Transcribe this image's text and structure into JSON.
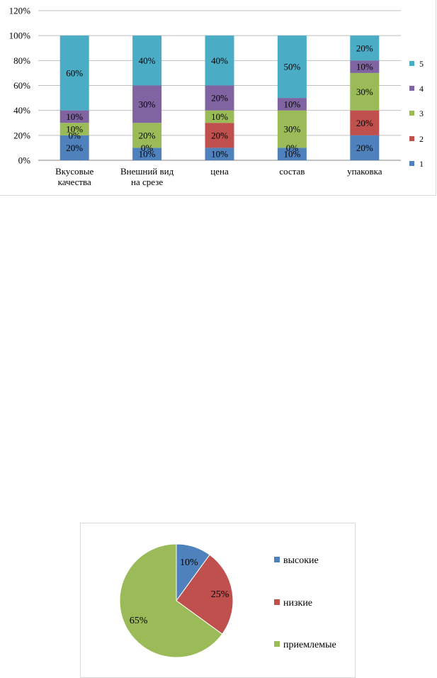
{
  "chart_data": [
    {
      "type": "bar",
      "stacked": true,
      "categories": [
        [
          "Вкусовые",
          "качества"
        ],
        [
          "Внешний вид",
          "на срезе"
        ],
        [
          "цена"
        ],
        [
          "состав"
        ],
        [
          "упаковка"
        ]
      ],
      "series": [
        {
          "name": "1",
          "color": "#4f81bd",
          "values": [
            20,
            10,
            10,
            10,
            20
          ],
          "labels": [
            "20%",
            "10%",
            "10%",
            "10%",
            "20%"
          ]
        },
        {
          "name": "2",
          "color": "#c0504d",
          "values": [
            0,
            0,
            20,
            0,
            20
          ],
          "labels": [
            "0%",
            "0%",
            "20%",
            "0%",
            "20%"
          ]
        },
        {
          "name": "3",
          "color": "#9bbb59",
          "values": [
            10,
            20,
            10,
            30,
            30
          ],
          "labels": [
            "10%",
            "20%",
            "10%",
            "30%",
            "30%"
          ]
        },
        {
          "name": "4",
          "color": "#8064a2",
          "values": [
            10,
            30,
            20,
            10,
            10
          ],
          "labels": [
            "10%",
            "30%",
            "20%",
            "10%",
            "10%"
          ]
        },
        {
          "name": "5",
          "color": "#4bacc6",
          "values": [
            60,
            40,
            40,
            50,
            20
          ],
          "labels": [
            "60%",
            "40%",
            "40%",
            "50%",
            "20%"
          ]
        }
      ],
      "yticks": [
        "0%",
        "20%",
        "40%",
        "60%",
        "80%",
        "100%",
        "120%"
      ],
      "ylim": [
        0,
        120
      ],
      "grid": true,
      "legend_position": "right"
    },
    {
      "type": "pie",
      "labels": [
        "высокие",
        "низкие",
        "приемлемые"
      ],
      "values": [
        10,
        25,
        65
      ],
      "value_labels": [
        "10%",
        "25%",
        "65%"
      ],
      "colors": [
        "#4f81bd",
        "#c0504d",
        "#9bbb59"
      ],
      "legend_position": "right"
    }
  ]
}
